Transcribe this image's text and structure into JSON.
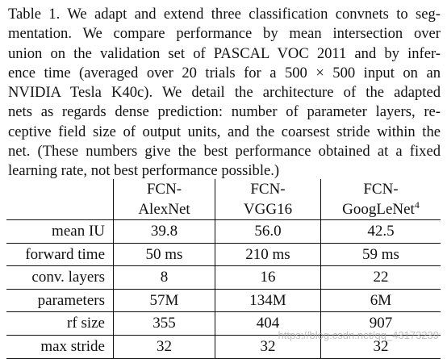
{
  "caption": {
    "lines": [
      "Table 1.  We adapt and extend three classification convnets to seg-",
      "mentation. We compare performance by mean intersection over",
      "union on the validation set of PASCAL VOC 2011 and by infer-",
      "ence time (averaged over 20 trials for a 500 × 500 input on an",
      "NVIDIA Tesla K40c). We detail the architecture of the adapted",
      "nets as regards dense prediction: number of parameter layers, re-",
      "ceptive field size of output units, and the coarsest stride within the",
      "net. (These numbers give the best performance obtained at a fixed",
      "learning rate, not best performance possible.)"
    ]
  },
  "table": {
    "columns": [
      {
        "line1": "FCN-",
        "line2": "AlexNet",
        "sup": ""
      },
      {
        "line1": "FCN-",
        "line2": "VGG16",
        "sup": ""
      },
      {
        "line1": "FCN-",
        "line2": "GoogLeNet",
        "sup": "4"
      }
    ],
    "rows": [
      {
        "label": "mean IU",
        "values": [
          "39.8",
          "56.0",
          "42.5"
        ],
        "bold_index": 1
      },
      {
        "label": "forward time",
        "values": [
          "50 ms",
          "210 ms",
          "59 ms"
        ]
      },
      {
        "label": "conv. layers",
        "values": [
          "8",
          "16",
          "22"
        ]
      },
      {
        "label": "parameters",
        "values": [
          "57M",
          "134M",
          "6M"
        ]
      },
      {
        "label": "rf size",
        "values": [
          "355",
          "404",
          "907"
        ]
      },
      {
        "label": "max stride",
        "values": [
          "32",
          "32",
          "32"
        ]
      }
    ]
  },
  "watermark": "https://blog.csdn.net/qq_43173239"
}
